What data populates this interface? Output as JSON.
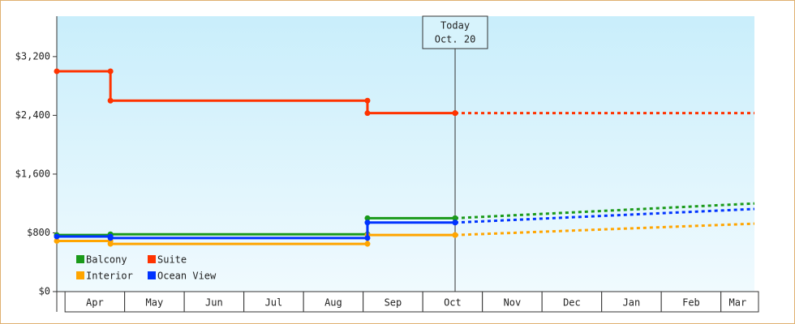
{
  "chart_data": {
    "type": "step-line",
    "xlim": [
      -0.07,
      11.63
    ],
    "xticks": [
      {
        "value": 0,
        "label": "Apr"
      },
      {
        "value": 1,
        "label": "May"
      },
      {
        "value": 2,
        "label": "Jun"
      },
      {
        "value": 3,
        "label": "Jul"
      },
      {
        "value": 4,
        "label": "Aug"
      },
      {
        "value": 5,
        "label": "Sep"
      },
      {
        "value": 6,
        "label": "Oct"
      },
      {
        "value": 7,
        "label": "Nov"
      },
      {
        "value": 8,
        "label": "Dec"
      },
      {
        "value": 9,
        "label": "Jan"
      },
      {
        "value": 10,
        "label": "Feb"
      },
      {
        "value": 11,
        "label": "Mar"
      }
    ],
    "ylim": [
      0,
      3750
    ],
    "yticks": [
      {
        "value": 0,
        "label": "$0"
      },
      {
        "value": 800,
        "label": "$800"
      },
      {
        "value": 1600,
        "label": "$1,600"
      },
      {
        "value": 2400,
        "label": "$2,400"
      },
      {
        "value": 3200,
        "label": "$3,200"
      }
    ],
    "today": {
      "x": 6.61,
      "label": [
        "Today",
        "Oct. 20"
      ]
    },
    "forecast_x": 11.63,
    "series": [
      {
        "name": "Balcony",
        "color": "#1a9a1a",
        "x": [
          -0.07,
          0.83,
          5.14,
          6.61
        ],
        "values": [
          770,
          780,
          1000,
          1000
        ],
        "forecast": 1200
      },
      {
        "name": "Suite",
        "color": "#ff3300",
        "x": [
          -0.07,
          0.83,
          5.14,
          6.61
        ],
        "values": [
          3000,
          2600,
          2430,
          2430
        ],
        "forecast": 2430
      },
      {
        "name": "Interior",
        "color": "#ffa500",
        "x": [
          -0.07,
          0.83,
          5.14,
          6.61
        ],
        "values": [
          690,
          650,
          770,
          770
        ],
        "forecast": 925
      },
      {
        "name": "Ocean View",
        "color": "#0033ff",
        "x": [
          -0.07,
          0.83,
          5.14,
          6.61
        ],
        "values": [
          750,
          730,
          940,
          940
        ],
        "forecast": 1125
      }
    ]
  }
}
